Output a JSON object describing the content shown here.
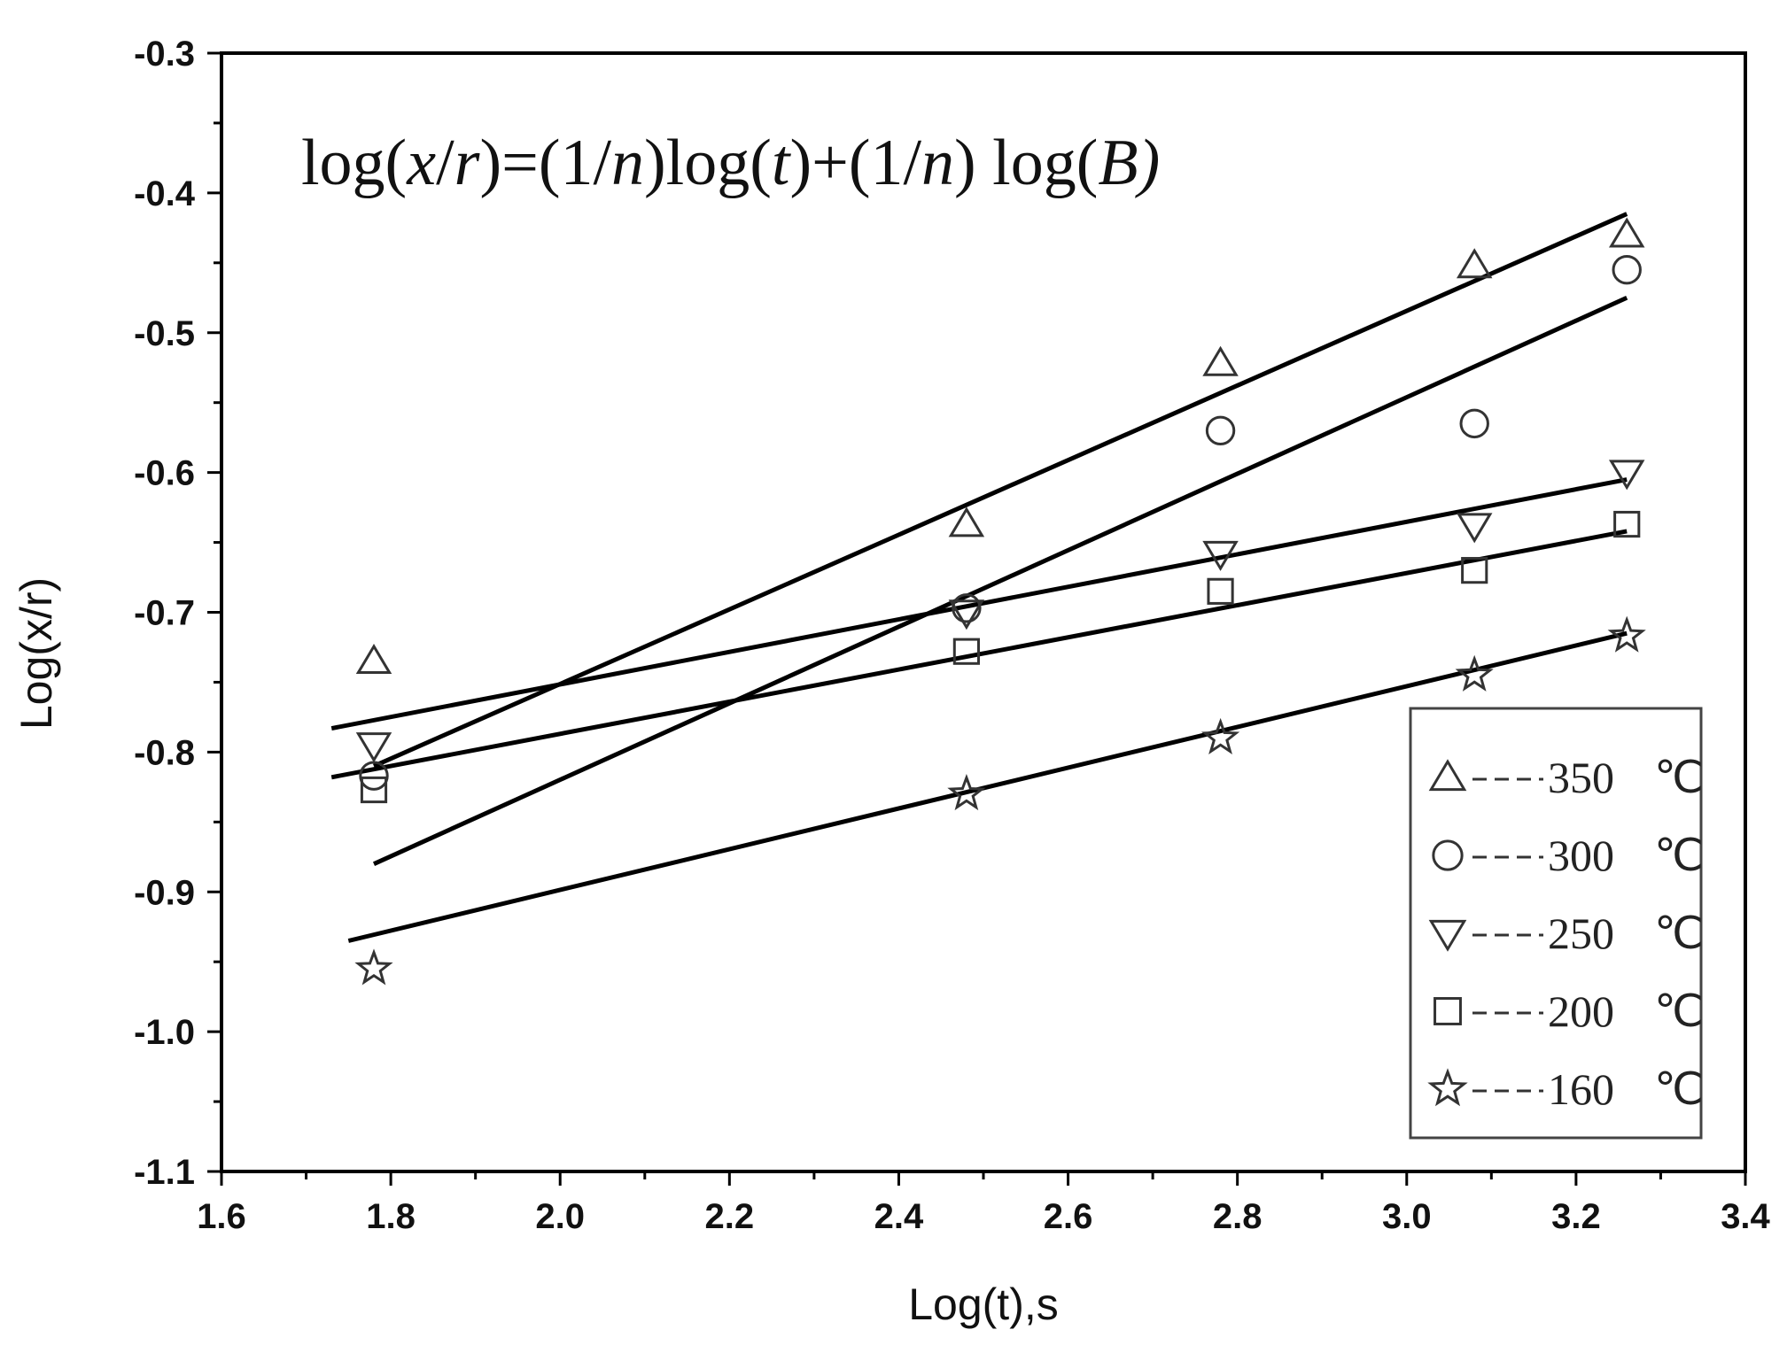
{
  "chart_data": {
    "type": "scatter",
    "title": "",
    "equation": {
      "parts": [
        {
          "t": "log(",
          "i": false
        },
        {
          "t": "x",
          "i": true
        },
        {
          "t": "/",
          "i": false
        },
        {
          "t": "r",
          "i": true
        },
        {
          "t": ")=(1/",
          "i": false
        },
        {
          "t": "n",
          "i": true
        },
        {
          "t": ")log(",
          "i": false
        },
        {
          "t": "t",
          "i": true
        },
        {
          "t": ")+(1/",
          "i": false
        },
        {
          "t": "n",
          "i": true
        },
        {
          "t": ") log(",
          "i": false
        },
        {
          "t": "B)",
          "i": true
        }
      ]
    },
    "xlabel": "Log(t),s",
    "ylabel": "Log(x/r)",
    "xlim": [
      1.6,
      3.4
    ],
    "ylim": [
      -1.1,
      -0.3
    ],
    "xticks": [
      "1.6",
      "1.8",
      "2.0",
      "2.2",
      "2.4",
      "2.6",
      "2.8",
      "3.0",
      "3.2",
      "3.4"
    ],
    "yticks": [
      "-0.3",
      "-0.4",
      "-0.5",
      "-0.6",
      "-0.7",
      "-0.8",
      "-0.9",
      "-1.0",
      "-1.1"
    ],
    "grid": false,
    "legend_position": "bottom-right",
    "series": [
      {
        "name": "350",
        "unit": "℃",
        "marker": "triangle-up",
        "points": [
          [
            1.78,
            -0.735
          ],
          [
            2.48,
            -0.637
          ],
          [
            2.78,
            -0.522
          ],
          [
            3.08,
            -0.452
          ],
          [
            3.26,
            -0.43
          ]
        ],
        "fit": [
          [
            1.78,
            -0.81
          ],
          [
            3.26,
            -0.415
          ]
        ]
      },
      {
        "name": "300",
        "unit": "℃",
        "marker": "circle",
        "points": [
          [
            1.78,
            -0.817
          ],
          [
            2.48,
            -0.697
          ],
          [
            2.78,
            -0.57
          ],
          [
            3.08,
            -0.565
          ],
          [
            3.26,
            -0.455
          ]
        ],
        "fit": [
          [
            1.78,
            -0.88
          ],
          [
            3.26,
            -0.475
          ]
        ]
      },
      {
        "name": "250",
        "unit": "℃",
        "marker": "triangle-down",
        "points": [
          [
            1.78,
            -0.795
          ],
          [
            2.48,
            -0.7
          ],
          [
            2.78,
            -0.658
          ],
          [
            3.08,
            -0.638
          ],
          [
            3.26,
            -0.6
          ]
        ],
        "fit": [
          [
            1.73,
            -0.783
          ],
          [
            3.26,
            -0.605
          ]
        ]
      },
      {
        "name": "200",
        "unit": "℃",
        "marker": "square",
        "points": [
          [
            1.78,
            -0.827
          ],
          [
            2.48,
            -0.728
          ],
          [
            2.78,
            -0.685
          ],
          [
            3.08,
            -0.67
          ],
          [
            3.26,
            -0.637
          ]
        ],
        "fit": [
          [
            1.73,
            -0.818
          ],
          [
            3.26,
            -0.642
          ]
        ]
      },
      {
        "name": "160",
        "unit": "℃",
        "marker": "star",
        "points": [
          [
            1.78,
            -0.955
          ],
          [
            2.48,
            -0.83
          ],
          [
            2.78,
            -0.79
          ],
          [
            3.08,
            -0.745
          ],
          [
            3.26,
            -0.717
          ]
        ],
        "fit": [
          [
            1.75,
            -0.935
          ],
          [
            3.26,
            -0.715
          ]
        ]
      }
    ]
  }
}
